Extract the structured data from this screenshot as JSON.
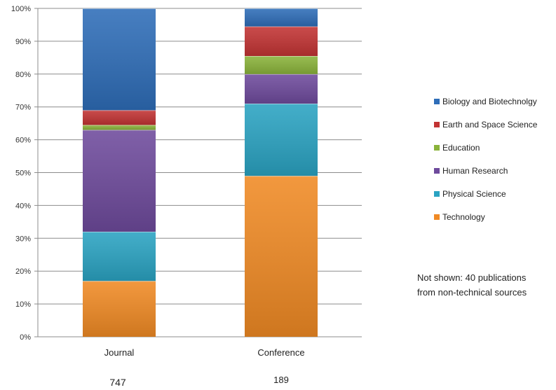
{
  "chart_data": {
    "type": "bar",
    "stacked": "percent",
    "categories": [
      "Journal",
      "Conference"
    ],
    "category_totals": [
      "747",
      "189"
    ],
    "ylim": [
      0,
      100
    ],
    "yticks": [
      "0%",
      "10%",
      "20%",
      "30%",
      "40%",
      "50%",
      "60%",
      "70%",
      "80%",
      "90%",
      "100%"
    ],
    "grid": true,
    "legend_position": "right",
    "series": [
      {
        "name": "Technology",
        "color": "#F08a24",
        "values": [
          17,
          49
        ]
      },
      {
        "name": "Physical Science",
        "color": "#2aa3c2",
        "values": [
          15,
          22
        ]
      },
      {
        "name": "Human Research",
        "color": "#6e4a9c",
        "values": [
          31,
          9
        ]
      },
      {
        "name": "Education",
        "color": "#8ab33a",
        "values": [
          1.5,
          5.5
        ]
      },
      {
        "name": "Earth and Space Science",
        "color": "#c23333",
        "values": [
          4.5,
          9
        ]
      },
      {
        "name": "Biology and Biotechnolgy",
        "color": "#2e6db8",
        "values": [
          31,
          5.5
        ]
      }
    ],
    "legend_order": [
      "Biology and Biotechnolgy",
      "Earth and Space Science",
      "Education",
      "Human Research",
      "Physical Science",
      "Technology"
    ]
  },
  "note": {
    "line1": "Not shown: 40 publications",
    "line2": "from non-technical sources"
  }
}
